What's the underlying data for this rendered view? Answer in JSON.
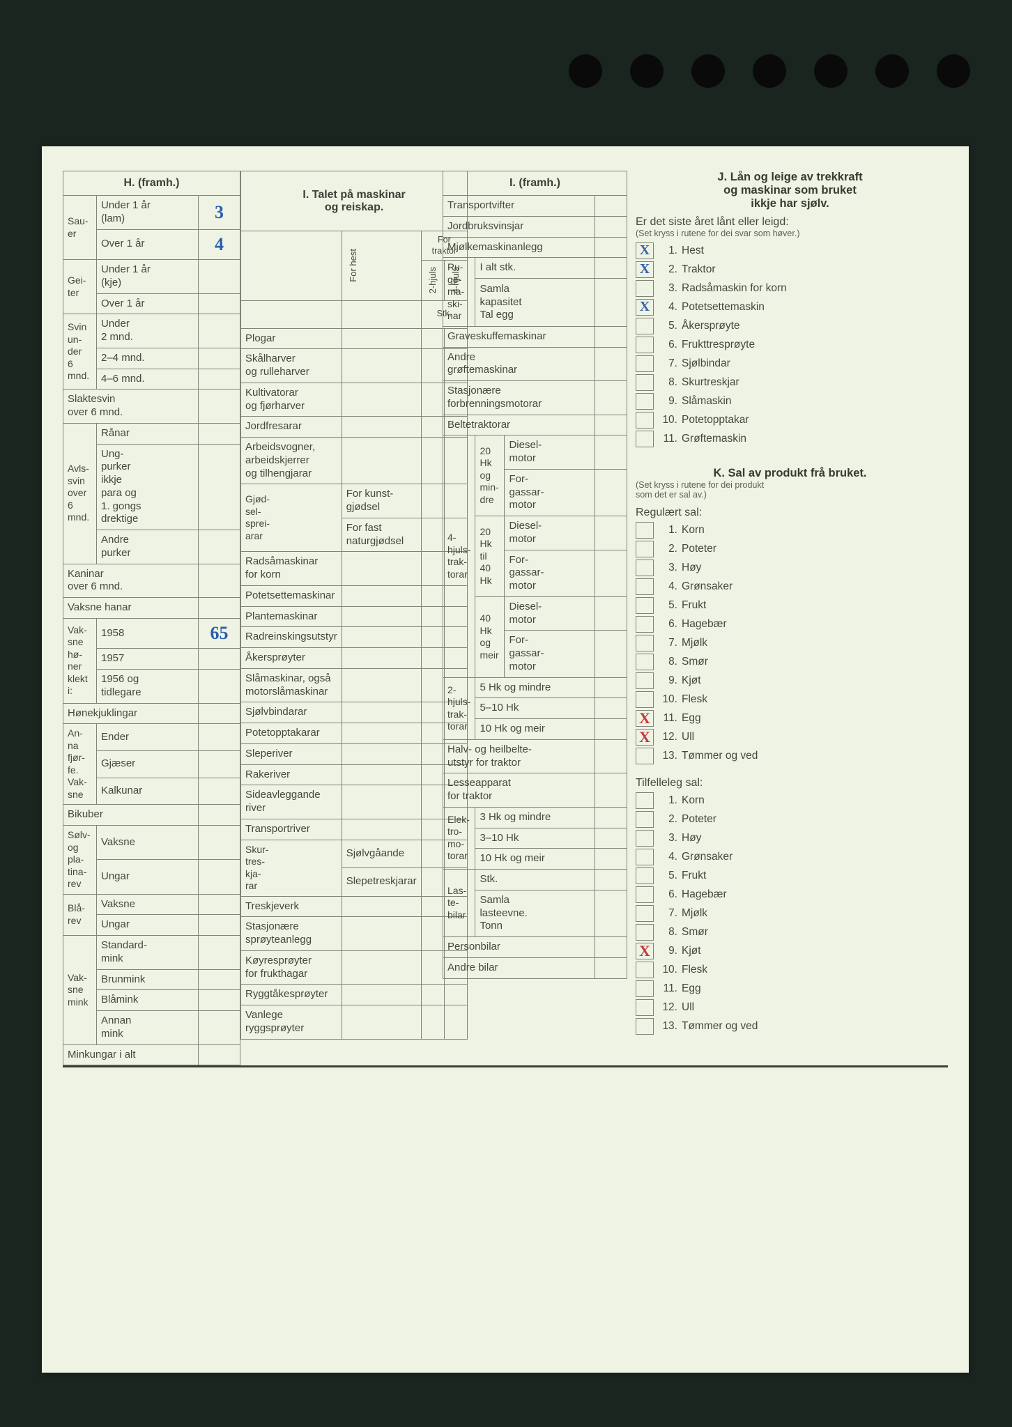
{
  "punchHoles": 7,
  "secH": {
    "title": "H. (framh.)",
    "groups": [
      {
        "label": "Sau-\ner",
        "rows": [
          {
            "label": "Under 1 år\n(lam)",
            "value": "3"
          },
          {
            "label": "Over 1 år",
            "value": "4"
          }
        ]
      },
      {
        "label": "Gei-\nter",
        "rows": [
          {
            "label": "Under 1 år\n(kje)",
            "value": ""
          },
          {
            "label": "Over 1 år",
            "value": ""
          }
        ]
      },
      {
        "label": "Svin\nun-\nder\n6\nmnd.",
        "rows": [
          {
            "label": "Under\n2 mnd.",
            "value": ""
          },
          {
            "label": "2–4 mnd.",
            "value": ""
          },
          {
            "label": "4–6 mnd.",
            "value": ""
          }
        ]
      },
      {
        "label": "",
        "span": true,
        "rows": [
          {
            "label": "Slaktesvin\nover 6 mnd.",
            "value": ""
          }
        ]
      },
      {
        "label": "Avls-\nsvin\nover\n6\nmnd.",
        "rows": [
          {
            "label": "Rånar",
            "value": ""
          },
          {
            "label": "Ung-\npurker\nikkje\npara og\n1. gongs\ndrektige",
            "value": ""
          },
          {
            "label": "Andre\npurker",
            "value": ""
          }
        ]
      },
      {
        "label": "",
        "span": true,
        "rows": [
          {
            "label": "Kaninar\nover 6 mnd.",
            "value": ""
          }
        ]
      },
      {
        "label": "",
        "span": true,
        "rows": [
          {
            "label": "Vaksne hanar",
            "value": ""
          }
        ]
      },
      {
        "label": "Vak-\nsne\nhø-\nner\nklekt\ni:",
        "rows": [
          {
            "label": "1958",
            "value": "65"
          },
          {
            "label": "1957",
            "value": ""
          },
          {
            "label": "1956 og\ntidlegare",
            "value": ""
          }
        ]
      },
      {
        "label": "",
        "span": true,
        "rows": [
          {
            "label": "Hønekjuklingar",
            "value": ""
          }
        ]
      },
      {
        "label": "An-\nna\nfjør-\nfe.\nVak-\nsne",
        "rows": [
          {
            "label": "Ender",
            "value": ""
          },
          {
            "label": "Gjæser",
            "value": ""
          },
          {
            "label": "Kalkunar",
            "value": ""
          }
        ]
      },
      {
        "label": "",
        "span": true,
        "rows": [
          {
            "label": "Bikuber",
            "value": ""
          }
        ]
      },
      {
        "label": "Sølv-\nog\npla-\ntina-\nrev",
        "rows": [
          {
            "label": "Vaksne",
            "value": ""
          },
          {
            "label": "Ungar",
            "value": ""
          }
        ]
      },
      {
        "label": "Blå-\nrev",
        "rows": [
          {
            "label": "Vaksne",
            "value": ""
          },
          {
            "label": "Ungar",
            "value": ""
          }
        ]
      },
      {
        "label": "Vak-\nsne\nmink",
        "rows": [
          {
            "label": "Standard-\nmink",
            "value": ""
          },
          {
            "label": "Brunmink",
            "value": ""
          },
          {
            "label": "Blåmink",
            "value": ""
          },
          {
            "label": "Annan\nmink",
            "value": ""
          }
        ]
      },
      {
        "label": "",
        "span": true,
        "rows": [
          {
            "label": "Minkungar i alt",
            "value": ""
          }
        ]
      }
    ]
  },
  "secI": {
    "title": "I. Talet på maskinar\nog reiskap.",
    "colHeads": {
      "forHest": "For hest",
      "forTraktor": "For\ntraktor",
      "hjuls2": "2-hjuls",
      "hjuls4": "4-hjuls",
      "stk": "Stk."
    },
    "rows": [
      "Plogar",
      "Skålharver\nog rulleharver",
      "Kultivatorar\nog fjørharver",
      "Jordfresarar",
      "Arbeidsvogner,\narbeidskjerrer\nog tilhengjarar"
    ],
    "gjodsel": {
      "group": "Gjød-\nsel-\nsprei-\narar",
      "rows": [
        "For kunst-\ngjødsel",
        "For fast\nnaturgjødsel"
      ]
    },
    "rows2": [
      "Radsåmaskinar\nfor korn",
      "Potetsettemaskinar",
      "Plantemaskinar",
      "Radreinskingsutstyr",
      "Åkersprøyter",
      "Slåmaskinar, også\nmotorslåmaskinar",
      "Sjølvbindarar",
      "Potetopptakarar",
      "Sleperiver",
      "Rakeriver",
      "Sideavleggande\nriver",
      "Transportriver"
    ],
    "skur": {
      "group": "Skur-\ntres-\nkja-\nrar",
      "rows": [
        "Sjølvgåande",
        "Slepetreskjarar"
      ]
    },
    "rows3": [
      "Treskjeverk",
      "Stasjonære\nsprøyteanlegg",
      "Køyresprøyter\nfor frukthagar",
      "Ryggtåkesprøyter",
      "Vanlege ryggsprøyter"
    ]
  },
  "secI2": {
    "title": "I. (framh.)",
    "top": [
      "Transportvifter",
      "Jordbruksvinsjar",
      "Mjølkemaskinanlegg"
    ],
    "ruge": {
      "group": "Ru-\nge-\nma-\nski-\nnar",
      "rows": [
        "I alt stk.",
        "Samla\nkapasitet\nTal egg"
      ]
    },
    "mid": [
      "Graveskuffemaskinar",
      "Andre\ngrøftemaskinar",
      "Stasjonære\nforbrenningsmotorar",
      "Beltetraktorar"
    ],
    "trak4": {
      "group": "4-\nhjuls-\ntrak-\ntorar",
      "sub": [
        {
          "g": "20\nHk\nog\nmin-\ndre",
          "rows": [
            "Diesel-\nmotor",
            "For-\ngassar-\nmotor"
          ]
        },
        {
          "g": "20\nHk\ntil\n40\nHk",
          "rows": [
            "Diesel-\nmotor",
            "For-\ngassar-\nmotor"
          ]
        },
        {
          "g": "40\nHk\nog\nmeir",
          "rows": [
            "Diesel-\nmotor",
            "For-\ngassar-\nmotor"
          ]
        }
      ]
    },
    "trak2": {
      "group": "2-\nhjuls-\ntrak-\ntorar",
      "rows": [
        "5 Hk og mindre",
        "5–10 Hk",
        "10 Hk og meir"
      ]
    },
    "halv": "Halv- og heilbelte-\nutstyr for traktor",
    "lesse": "Lesseapparat\nfor traktor",
    "elektro": {
      "group": "Elek-\ntro-\nmo-\ntorar",
      "rows": [
        "3 Hk og mindre",
        "3–10 Hk",
        "10 Hk og meir"
      ]
    },
    "laste": {
      "group": "Las-\nte-\nbilar",
      "rows": [
        "Stk.",
        "Samla\nlasteevne.\nTonn"
      ]
    },
    "bottom": [
      "Personbilar",
      "Andre bilar"
    ]
  },
  "secJ": {
    "title": "J. Lån og leige av trekkraft\nog maskinar som bruket\nikkje har sjølv.",
    "lead": "Er det siste året lånt eller leigd:",
    "note": "(Set kryss i rutene for dei svar som høver.)",
    "items": [
      {
        "n": "1.",
        "label": "Hest",
        "x": "X",
        "xc": "b"
      },
      {
        "n": "2.",
        "label": "Traktor",
        "x": "X",
        "xc": "b"
      },
      {
        "n": "3.",
        "label": "Radsåmaskin for korn",
        "x": ""
      },
      {
        "n": "4.",
        "label": "Potetsettemaskin",
        "x": "X",
        "xc": "b"
      },
      {
        "n": "5.",
        "label": "Åkersprøyte",
        "x": ""
      },
      {
        "n": "6.",
        "label": "Frukttresprøyte",
        "x": ""
      },
      {
        "n": "7.",
        "label": "Sjølbindar",
        "x": ""
      },
      {
        "n": "8.",
        "label": "Skurtreskjar",
        "x": ""
      },
      {
        "n": "9.",
        "label": "Slåmaskin",
        "x": ""
      },
      {
        "n": "10.",
        "label": "Potetopptakar",
        "x": ""
      },
      {
        "n": "11.",
        "label": "Grøftemaskin",
        "x": ""
      }
    ]
  },
  "secK": {
    "title": "K. Sal av produkt frå bruket.",
    "note": "(Set kryss i rutene for dei produkt\nsom det er sal av.)",
    "reg": {
      "heading": "Regulært sal:",
      "items": [
        {
          "n": "1.",
          "label": "Korn",
          "x": ""
        },
        {
          "n": "2.",
          "label": "Poteter",
          "x": ""
        },
        {
          "n": "3.",
          "label": "Høy",
          "x": ""
        },
        {
          "n": "4.",
          "label": "Grønsaker",
          "x": ""
        },
        {
          "n": "5.",
          "label": "Frukt",
          "x": ""
        },
        {
          "n": "6.",
          "label": "Hagebær",
          "x": ""
        },
        {
          "n": "7.",
          "label": "Mjølk",
          "x": ""
        },
        {
          "n": "8.",
          "label": "Smør",
          "x": ""
        },
        {
          "n": "9.",
          "label": "Kjøt",
          "x": ""
        },
        {
          "n": "10.",
          "label": "Flesk",
          "x": ""
        },
        {
          "n": "11.",
          "label": "Egg",
          "x": "X",
          "xc": "r"
        },
        {
          "n": "12.",
          "label": "Ull",
          "x": "X",
          "xc": "r"
        },
        {
          "n": "13.",
          "label": "Tømmer og ved",
          "x": ""
        }
      ]
    },
    "til": {
      "heading": "Tilfelleleg sal:",
      "items": [
        {
          "n": "1.",
          "label": "Korn",
          "x": ""
        },
        {
          "n": "2.",
          "label": "Poteter",
          "x": ""
        },
        {
          "n": "3.",
          "label": "Høy",
          "x": ""
        },
        {
          "n": "4.",
          "label": "Grønsaker",
          "x": ""
        },
        {
          "n": "5.",
          "label": "Frukt",
          "x": ""
        },
        {
          "n": "6.",
          "label": "Hagebær",
          "x": ""
        },
        {
          "n": "7.",
          "label": "Mjølk",
          "x": ""
        },
        {
          "n": "8.",
          "label": "Smør",
          "x": ""
        },
        {
          "n": "9.",
          "label": "Kjøt",
          "x": "X",
          "xc": "r"
        },
        {
          "n": "10.",
          "label": "Flesk",
          "x": ""
        },
        {
          "n": "11.",
          "label": "Egg",
          "x": ""
        },
        {
          "n": "12.",
          "label": "Ull",
          "x": ""
        },
        {
          "n": "13.",
          "label": "Tømmer og ved",
          "x": ""
        }
      ]
    }
  }
}
